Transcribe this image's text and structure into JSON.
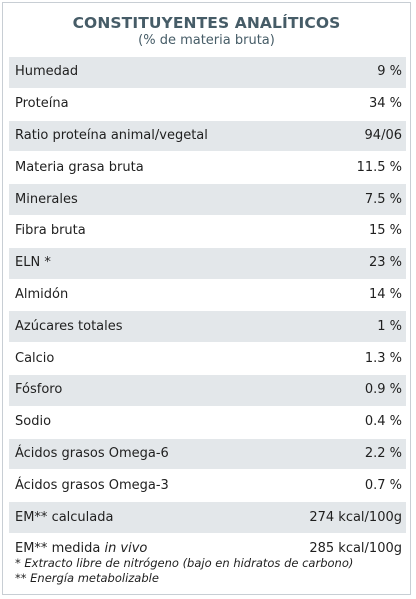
{
  "header": {
    "title": "CONSTITUYENTES ANALÍTICOS",
    "subtitle": "(% de materia bruta)"
  },
  "rows": [
    {
      "label": "Humedad",
      "value": "9 %"
    },
    {
      "label": "Proteína",
      "value": "34 %"
    },
    {
      "label": "Ratio proteína animal/vegetal",
      "value": "94/06"
    },
    {
      "label": "Materia grasa bruta",
      "value": "11.5 %"
    },
    {
      "label": "Minerales",
      "value": "7.5 %"
    },
    {
      "label": "Fibra bruta",
      "value": "15 %"
    },
    {
      "label": "ELN *",
      "value": "23 %"
    },
    {
      "label": "Almidón",
      "value": "14 %"
    },
    {
      "label": "Azúcares totales",
      "value": "1 %"
    },
    {
      "label": "Calcio",
      "value": "1.3 %"
    },
    {
      "label": "Fósforo",
      "value": "0.9 %"
    },
    {
      "label": "Sodio",
      "value": "0.4 %"
    },
    {
      "label": "Ácidos grasos Omega-6",
      "value": "2.2 %"
    },
    {
      "label": "Ácidos grasos Omega-3",
      "value": "0.7 %"
    },
    {
      "label": "EM** calculada",
      "value": "274 kcal/100g"
    },
    {
      "label_prefix": "EM** medida ",
      "label_italic": "in vivo",
      "value": "285 kcal/100g"
    }
  ],
  "footnotes": [
    "* Extracto libre de nitrógeno (bajo en hidratos de carbono)",
    "** Energía metabolizable"
  ],
  "colors": {
    "title": "#465c67",
    "row_shade": "#e3e7ea",
    "border": "#c8ced4"
  }
}
